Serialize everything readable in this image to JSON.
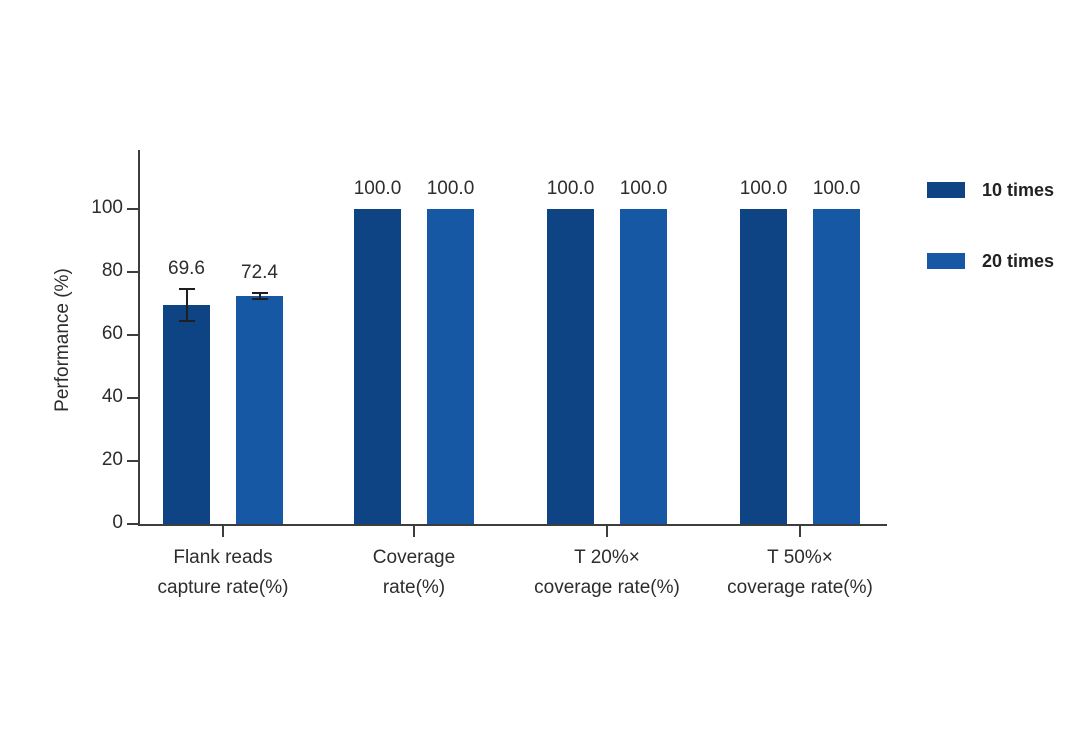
{
  "chart_data": {
    "type": "bar",
    "title": "",
    "xlabel": "",
    "ylabel": "Performance (%)",
    "ylim": [
      0,
      118
    ],
    "yticks": [
      0,
      20,
      40,
      60,
      80,
      100
    ],
    "grid": false,
    "legend_position": "right",
    "categories": [
      {
        "lines": [
          "Flank reads",
          "capture rate(%)"
        ]
      },
      {
        "lines": [
          "Coverage",
          "rate(%)"
        ]
      },
      {
        "lines": [
          "T 20%×",
          "coverage rate(%)"
        ]
      },
      {
        "lines": [
          "T 50%×",
          "coverage rate(%)"
        ]
      }
    ],
    "series": [
      {
        "name": "10 times",
        "color": "#0e4384",
        "values": [
          69.6,
          100.0,
          100.0,
          100.0
        ],
        "errors": [
          5.0,
          0,
          0,
          0
        ],
        "value_labels": [
          "69.6",
          "100.0",
          "100.0",
          "100.0"
        ]
      },
      {
        "name": "20 times",
        "color": "#1758a5",
        "values": [
          72.4,
          100.0,
          100.0,
          100.0
        ],
        "errors": [
          1.0,
          0,
          0,
          0
        ],
        "value_labels": [
          "72.4",
          "100.0",
          "100.0",
          "100.0"
        ]
      }
    ]
  },
  "colors": {
    "axis": "#3d3d3d",
    "text": "#2d2d2d",
    "error_bar": "#1f1f1f",
    "background": "#ffffff"
  }
}
